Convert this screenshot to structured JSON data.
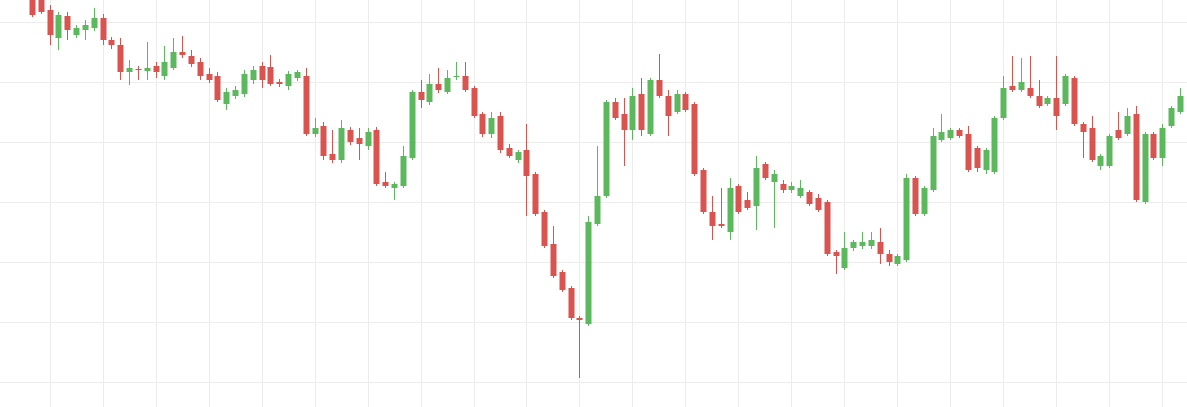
{
  "chart_data": {
    "type": "candlestick",
    "up_color": "#5cb85c",
    "down_color": "#d9534f",
    "ylim": [
      0,
      407
    ],
    "yticks": [
      25,
      85,
      145,
      205,
      265,
      325,
      385
    ],
    "grid": true,
    "open": [
      407,
      407,
      397,
      369,
      391,
      372,
      377,
      379,
      389,
      367,
      362,
      335,
      338,
      336,
      341,
      331,
      339,
      355,
      351,
      345,
      333,
      331,
      303,
      311,
      313,
      327,
      341,
      340,
      325,
      321,
      329,
      331,
      273,
      281,
      253,
      247,
      277,
      269,
      261,
      277,
      225,
      219,
      221,
      249,
      315,
      305,
      323,
      315,
      330,
      331,
      319,
      293,
      273,
      291,
      259,
      247,
      257,
      233,
      195,
      163,
      135,
      119,
      89,
      83,
      183,
      211,
      305,
      293,
      277,
      313,
      273,
      327,
      311,
      295,
      313,
      303,
      237,
      195,
      183,
      175,
      221,
      207,
      201,
      243,
      225,
      223,
      217,
      211,
      215,
      209,
      205,
      155,
      139,
      159,
      161,
      161,
      165,
      153,
      143,
      147,
      229,
      193,
      217,
      267,
      269,
      277,
      273,
      259,
      237,
      235,
      289,
      321,
      317,
      319,
      311,
      303,
      309,
      303,
      329,
      283,
      279,
      241,
      241,
      277,
      273,
      293,
      205,
      273,
      249,
      281,
      295
    ],
    "high": [
      407,
      407,
      402,
      395,
      395,
      382,
      387,
      399,
      393,
      370,
      369,
      347,
      341,
      365,
      345,
      361,
      369,
      371,
      357,
      349,
      339,
      335,
      319,
      321,
      337,
      341,
      345,
      352,
      328,
      336,
      337,
      339,
      289,
      285,
      277,
      287,
      280,
      279,
      279,
      280,
      235,
      225,
      261,
      317,
      327,
      333,
      339,
      337,
      345,
      345,
      321,
      295,
      295,
      295,
      263,
      257,
      283,
      235,
      197,
      181,
      137,
      121,
      91,
      191,
      261,
      307,
      309,
      309,
      319,
      329,
      329,
      353,
      317,
      317,
      315,
      305,
      239,
      211,
      219,
      229,
      223,
      215,
      251,
      245,
      237,
      227,
      225,
      227,
      217,
      213,
      207,
      157,
      175,
      167,
      175,
      175,
      179,
      157,
      153,
      233,
      231,
      221,
      279,
      293,
      279,
      279,
      281,
      261,
      259,
      291,
      331,
      351,
      349,
      351,
      327,
      311,
      351,
      333,
      331,
      285,
      291,
      253,
      273,
      295,
      299,
      301,
      275,
      275,
      283,
      301,
      319
    ],
    "low": [
      390,
      393,
      362,
      357,
      367,
      369,
      367,
      376,
      362,
      358,
      327,
      322,
      327,
      327,
      329,
      327,
      337,
      349,
      340,
      327,
      324,
      305,
      297,
      308,
      310,
      323,
      319,
      321,
      320,
      317,
      326,
      271,
      270,
      247,
      244,
      244,
      262,
      247,
      257,
      221,
      219,
      207,
      219,
      247,
      299,
      302,
      314,
      313,
      327,
      315,
      289,
      270,
      269,
      254,
      249,
      244,
      191,
      191,
      159,
      129,
      115,
      87,
      29,
      81,
      181,
      209,
      287,
      241,
      267,
      271,
      271,
      309,
      271,
      293,
      295,
      231,
      193,
      167,
      179,
      167,
      193,
      197,
      177,
      227,
      179,
      214,
      214,
      209,
      201,
      195,
      151,
      133,
      137,
      156,
      158,
      158,
      143,
      141,
      141,
      145,
      191,
      191,
      215,
      265,
      267,
      269,
      235,
      235,
      233,
      233,
      287,
      315,
      315,
      309,
      299,
      301,
      277,
      301,
      281,
      249,
      245,
      237,
      239,
      267,
      271,
      205,
      203,
      247,
      241,
      279,
      293
    ],
    "close": [
      392,
      395,
      372,
      392,
      377,
      379,
      382,
      389,
      367,
      362,
      335,
      339,
      337,
      339,
      335,
      345,
      355,
      352,
      343,
      331,
      327,
      307,
      315,
      317,
      333,
      337,
      327,
      323,
      323,
      333,
      335,
      273,
      279,
      251,
      247,
      279,
      265,
      263,
      275,
      223,
      221,
      223,
      251,
      315,
      307,
      323,
      317,
      329,
      331,
      317,
      291,
      273,
      289,
      257,
      251,
      255,
      231,
      193,
      161,
      131,
      117,
      89,
      87,
      185,
      211,
      305,
      289,
      277,
      311,
      277,
      327,
      311,
      291,
      313,
      297,
      233,
      195,
      181,
      181,
      219,
      195,
      199,
      239,
      229,
      233,
      217,
      221,
      219,
      203,
      197,
      153,
      151,
      159,
      165,
      165,
      167,
      153,
      145,
      151,
      229,
      193,
      219,
      271,
      275,
      277,
      271,
      237,
      239,
      257,
      289,
      319,
      317,
      325,
      311,
      301,
      309,
      291,
      331,
      283,
      275,
      247,
      251,
      271,
      269,
      291,
      207,
      273,
      249,
      279,
      299,
      311
    ]
  }
}
